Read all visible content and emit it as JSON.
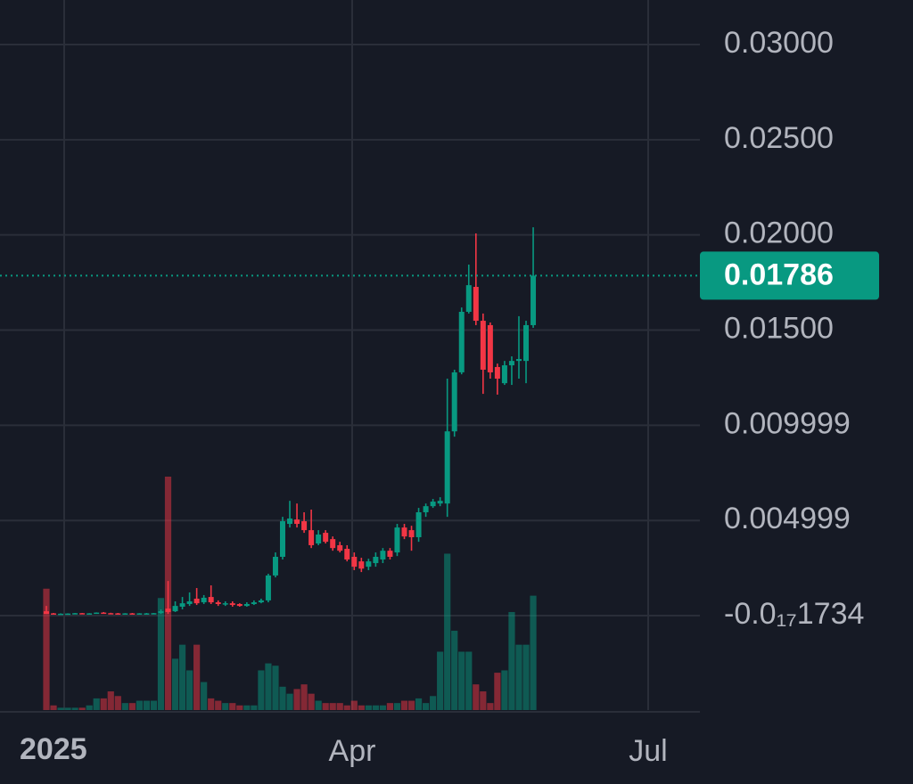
{
  "chart_data": {
    "type": "candlestick",
    "x_labels": [
      "2025",
      "Apr",
      "Jul"
    ],
    "ylim": [
      -0.00496,
      0.03234
    ],
    "yticks": [
      {
        "value": 0.03,
        "label": "0.03000"
      },
      {
        "value": 0.025,
        "label": "0.02500"
      },
      {
        "value": 0.02,
        "label": "0.02000"
      },
      {
        "value": 0.015,
        "label": "0.01500"
      },
      0.009999,
      0.004999,
      {
        "value": -1.734e-18,
        "label": "-0.0₁₇1734"
      }
    ],
    "grid": true,
    "up_color": "#089981",
    "down_color": "#f23645",
    "last_price": 0.01786,
    "candles": [
      [
        0.00023,
        0.00051,
        9e-05,
        9e-05
      ],
      [
        0.00012,
        0.00014,
        9e-05,
        0.0001
      ],
      [
        0.0001,
        0.00012,
        9e-05,
        0.0001
      ],
      [
        0.0001,
        0.00012,
        8e-05,
        0.00011
      ],
      [
        0.00011,
        0.00014,
        0.0001,
        0.00013
      ],
      [
        0.00013,
        0.00014,
        0.0001,
        0.00011
      ],
      [
        0.00011,
        0.00013,
        0.0001,
        0.00012
      ],
      [
        0.00012,
        0.00017,
        0.0001,
        0.00016
      ],
      [
        0.00016,
        0.00019,
        0.00012,
        0.00013
      ],
      [
        0.00013,
        0.00015,
        0.00011,
        0.00012
      ],
      [
        0.00012,
        0.00014,
        0.0001,
        0.00011
      ],
      [
        0.00011,
        0.00013,
        0.0001,
        0.00012
      ],
      [
        0.00012,
        0.00014,
        0.0001,
        0.00011
      ],
      [
        0.00011,
        0.00013,
        0.0001,
        0.00012
      ],
      [
        0.00012,
        0.00014,
        0.0001,
        0.00012
      ],
      [
        0.00012,
        0.00014,
        0.0001,
        0.00013
      ],
      [
        0.00014,
        0.00033,
        9e-05,
        0.00023
      ],
      [
        0.00037,
        0.00182,
        9e-05,
        0.00019
      ],
      [
        0.00023,
        0.00075,
        0.00019,
        0.00051
      ],
      [
        0.00047,
        0.00098,
        0.00033,
        0.00065
      ],
      [
        0.00061,
        0.00122,
        0.00051,
        0.00075
      ],
      [
        0.00089,
        0.00145,
        0.00056,
        0.00065
      ],
      [
        0.0007,
        0.00108,
        0.00061,
        0.00094
      ],
      [
        0.00098,
        0.00159,
        0.00061,
        0.0007
      ],
      [
        0.0007,
        0.0008,
        0.00051,
        0.00061
      ],
      [
        0.00061,
        0.00075,
        0.00051,
        0.00065
      ],
      [
        0.00065,
        0.00075,
        0.00047,
        0.00056
      ],
      [
        0.00061,
        0.00065,
        0.00047,
        0.00051
      ],
      [
        0.00051,
        0.0007,
        0.00047,
        0.00061
      ],
      [
        0.00061,
        0.0008,
        0.00056,
        0.0007
      ],
      [
        0.0007,
        0.00089,
        0.00065,
        0.0008
      ],
      [
        0.0008,
        0.0022,
        0.0007,
        0.00211
      ],
      [
        0.00211,
        0.00332,
        0.00201,
        0.00309
      ],
      [
        0.00309,
        0.00519,
        0.00295,
        0.00496
      ],
      [
        0.00482,
        0.00603,
        0.00463,
        0.0051
      ],
      [
        0.00505,
        0.00589,
        0.00463,
        0.00482
      ],
      [
        0.00496,
        0.00543,
        0.00435,
        0.00449
      ],
      [
        0.00449,
        0.00557,
        0.00355,
        0.0037
      ],
      [
        0.00379,
        0.00449,
        0.0037,
        0.00426
      ],
      [
        0.00435,
        0.00449,
        0.00379,
        0.00388
      ],
      [
        0.00402,
        0.00416,
        0.00341,
        0.00355
      ],
      [
        0.0037,
        0.00388,
        0.00332,
        0.00341
      ],
      [
        0.00351,
        0.0037,
        0.00285,
        0.00295
      ],
      [
        0.00309,
        0.00332,
        0.00239,
        0.00257
      ],
      [
        0.00285,
        0.00304,
        0.00229,
        0.00247
      ],
      [
        0.00257,
        0.00299,
        0.00239,
        0.00285
      ],
      [
        0.00276,
        0.00332,
        0.00257,
        0.00309
      ],
      [
        0.00295,
        0.00355,
        0.00276,
        0.00341
      ],
      [
        0.00341,
        0.00355,
        0.00295,
        0.00309
      ],
      [
        0.00332,
        0.00482,
        0.00313,
        0.00463
      ],
      [
        0.00463,
        0.00482,
        0.00402,
        0.00416
      ],
      [
        0.00449,
        0.00472,
        0.00341,
        0.00412
      ],
      [
        0.00412,
        0.00566,
        0.00388,
        0.00543
      ],
      [
        0.00543,
        0.00589,
        0.00519,
        0.00575
      ],
      [
        0.00575,
        0.00613,
        0.00566,
        0.00599
      ],
      [
        0.00589,
        0.00622,
        0.00575,
        0.00603
      ],
      [
        0.00589,
        0.01245,
        0.00519,
        0.00968
      ],
      [
        0.00968,
        0.01292,
        0.0094,
        0.01278
      ],
      [
        0.01278,
        0.01619,
        0.01268,
        0.01596
      ],
      [
        0.01596,
        0.01844,
        0.01587,
        0.01736
      ],
      [
        0.01727,
        0.02008,
        0.01526,
        0.01549
      ],
      [
        0.01549,
        0.01587,
        0.01165,
        0.01292
      ],
      [
        0.01526,
        0.0154,
        0.01245,
        0.01278
      ],
      [
        0.01306,
        0.01324,
        0.01161,
        0.01245
      ],
      [
        0.01221,
        0.01338,
        0.01212,
        0.01315
      ],
      [
        0.01315,
        0.01362,
        0.01212,
        0.01338
      ],
      [
        0.01338,
        0.01573,
        0.01245,
        0.01348
      ],
      [
        0.01338,
        0.01549,
        0.01221,
        0.01526
      ],
      [
        0.01526,
        0.0204,
        0.01512,
        0.01786
      ]
    ],
    "volume": [
      52,
      2,
      1,
      1,
      1,
      1,
      2,
      5,
      5,
      8,
      6,
      3,
      3,
      4,
      4,
      4,
      48,
      100,
      22,
      28,
      17,
      28,
      12,
      5,
      4,
      3,
      3,
      2,
      2,
      2,
      17,
      20,
      19,
      10,
      7,
      9,
      11,
      7,
      4,
      3,
      3,
      3,
      2,
      4,
      2,
      2,
      2,
      2,
      3,
      3,
      4,
      4,
      5,
      3,
      6,
      25,
      67,
      34,
      25,
      25,
      11,
      8,
      3,
      16,
      17,
      42,
      28,
      28,
      49
    ]
  }
}
